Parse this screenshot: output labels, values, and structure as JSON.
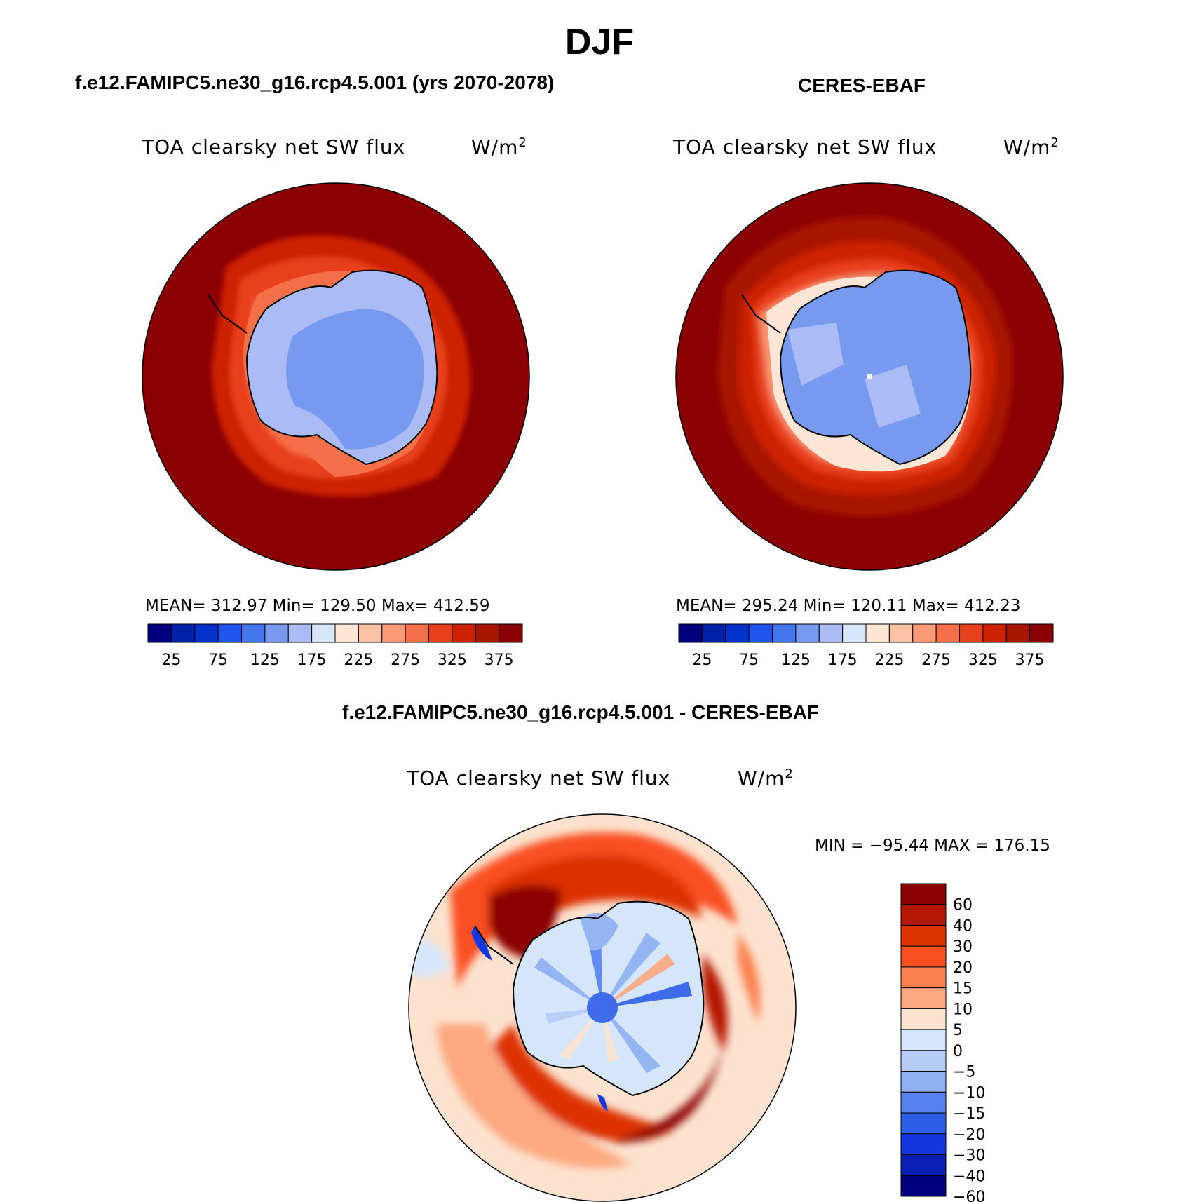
{
  "season": "DJF",
  "panels": {
    "model": {
      "header": "f.e12.FAMIPC5.ne30_g16.rcp4.5.001 (yrs 2070-2078)",
      "variable": "TOA clearsky net SW flux",
      "units": "W/m",
      "units_exp": "2",
      "stats": "MEAN= 312.97   Min= 129.50   Max= 412.59"
    },
    "obs": {
      "header": "CERES-EBAF",
      "variable": "TOA clearsky net SW flux",
      "units": "W/m",
      "units_exp": "2",
      "stats": "MEAN= 295.24   Min= 120.11   Max= 412.23"
    },
    "diff": {
      "header": "f.e12.FAMIPC5.ne30_g16.rcp4.5.001 - CERES-EBAF",
      "variable": "TOA clearsky net SW flux",
      "units": "W/m",
      "units_exp": "2",
      "stats": "MIN = −95.44 MAX = 176.15"
    }
  },
  "chart_data": [
    {
      "type": "heatmap",
      "projection": "south polar stereographic",
      "title": "f.e12.FAMIPC5.ne30_g16.rcp4.5.001 (yrs 2070-2078)",
      "variable": "TOA clearsky net SW flux",
      "units": "W/m2",
      "mean": 312.97,
      "min": 129.5,
      "max": 412.59,
      "colorbar_orientation": "horizontal",
      "colorbar_colors": [
        "#00007f",
        "#0022aa",
        "#0033cc",
        "#1f55ee",
        "#4477ee",
        "#7799ee",
        "#aabbf5",
        "#d8e6fa",
        "#fde6d6",
        "#fcc2a5",
        "#fa9a76",
        "#f57048",
        "#e8401c",
        "#cc2200",
        "#a81500",
        "#8b0000"
      ],
      "colorbar_ticks": [
        "25",
        "75",
        "125",
        "175",
        "225",
        "275",
        "325",
        "375"
      ]
    },
    {
      "type": "heatmap",
      "projection": "south polar stereographic",
      "title": "CERES-EBAF",
      "variable": "TOA clearsky net SW flux",
      "units": "W/m2",
      "mean": 295.24,
      "min": 120.11,
      "max": 412.23,
      "colorbar_orientation": "horizontal",
      "colorbar_colors": [
        "#00007f",
        "#0022aa",
        "#0033cc",
        "#1f55ee",
        "#4477ee",
        "#7799ee",
        "#aabbf5",
        "#d8e6fa",
        "#fde6d6",
        "#fcc2a5",
        "#fa9a76",
        "#f57048",
        "#e8401c",
        "#cc2200",
        "#a81500",
        "#8b0000"
      ],
      "colorbar_ticks": [
        "25",
        "75",
        "125",
        "175",
        "225",
        "275",
        "325",
        "375"
      ]
    },
    {
      "type": "heatmap",
      "projection": "south polar stereographic",
      "title": "f.e12.FAMIPC5.ne30_g16.rcp4.5.001 - CERES-EBAF",
      "variable": "TOA clearsky net SW flux",
      "units": "W/m2",
      "min": -95.44,
      "max": 176.15,
      "colorbar_orientation": "vertical",
      "colorbar_colors": [
        "#8b0000",
        "#b51800",
        "#dd3300",
        "#f95020",
        "#fa8050",
        "#fca880",
        "#fde3cf",
        "#d6e6fa",
        "#b5ccf5",
        "#8fb0f2",
        "#5582ef",
        "#2e5ee8",
        "#1338e0",
        "#0a20b5",
        "#00007f"
      ],
      "colorbar_ticks": [
        "60",
        "40",
        "30",
        "20",
        "15",
        "10",
        "5",
        "0",
        "−5",
        "−10",
        "−15",
        "−20",
        "−30",
        "−40",
        "−60"
      ]
    }
  ]
}
